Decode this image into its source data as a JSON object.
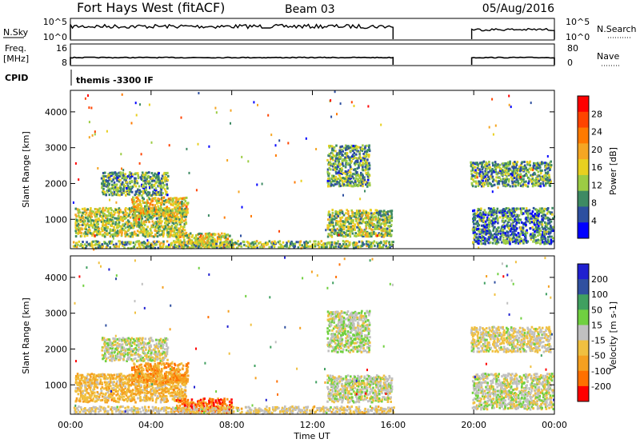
{
  "header": {
    "radar_title": "Fort Hays West (fitACF)",
    "beam": "Beam 03",
    "date": "05/Aug/2016"
  },
  "status_panel": {
    "nsky_label": "N.Sky",
    "nsky_ticks": [
      "10^5",
      "10^0"
    ],
    "nsearch_label": "N.Search",
    "nsearch_ticks": [
      "10^5",
      "10^0"
    ],
    "freq_label_1": "Freq.",
    "freq_label_2": "[MHz]",
    "freq_ticks": [
      "16",
      "8"
    ],
    "nave_label": "Nave",
    "nave_ticks": [
      "80",
      "0"
    ],
    "cpid_label": "CPID",
    "cpid_value": "themis -3300 IF"
  },
  "colors": {
    "power_scale": [
      "#0000ff",
      "#2d4fa0",
      "#3e8a63",
      "#9ccc44",
      "#e8d020",
      "#f5a623",
      "#ff7a00",
      "#ff4400",
      "#ff0000"
    ],
    "velocity_scale": [
      "#2020d0",
      "#3050a0",
      "#40a060",
      "#70d040",
      "#c0c0c0",
      "#f0c040",
      "#f5a020",
      "#ff7000",
      "#ff0000"
    ]
  },
  "chart_data": [
    {
      "type": "heatmap",
      "name": "power",
      "ylabel": "Slant Range [km]",
      "yticks": [
        "4000",
        "3000",
        "2000",
        "1000"
      ],
      "ylim": [
        180,
        4600
      ],
      "xlim": [
        0,
        24
      ],
      "colorbar_label": "Power [dB]",
      "colorbar_ticks": [
        "28",
        "24",
        "20",
        "16",
        "12",
        "8",
        "4"
      ],
      "colorbar_range": [
        0,
        32
      ],
      "regions": [
        {
          "t0": 0.2,
          "t1": 5.7,
          "r0": 500,
          "r1": 1300,
          "v": 14
        },
        {
          "t0": 3.0,
          "t1": 5.8,
          "r0": 1050,
          "r1": 1600,
          "v": 16
        },
        {
          "t0": 1.5,
          "t1": 4.8,
          "r0": 1650,
          "r1": 2300,
          "v": 10
        },
        {
          "t0": 5.2,
          "t1": 8.0,
          "r0": 200,
          "r1": 600,
          "v": 15
        },
        {
          "t0": 0.1,
          "t1": 16.0,
          "r0": 180,
          "r1": 380,
          "v": 12
        },
        {
          "t0": 12.7,
          "t1": 15.9,
          "r0": 500,
          "r1": 1250,
          "v": 13
        },
        {
          "t0": 12.7,
          "t1": 14.8,
          "r0": 1900,
          "r1": 3050,
          "v": 10
        },
        {
          "t0": 19.9,
          "t1": 23.9,
          "r0": 300,
          "r1": 1300,
          "v": 8
        },
        {
          "t0": 19.8,
          "t1": 23.8,
          "r0": 1900,
          "r1": 2600,
          "v": 10
        }
      ]
    },
    {
      "type": "heatmap",
      "name": "velocity",
      "ylabel": "Slant Range [km]",
      "yticks": [
        "4000",
        "3000",
        "2000",
        "1000"
      ],
      "ylim": [
        180,
        4600
      ],
      "xlim": [
        0,
        24
      ],
      "xticks": [
        "00:00",
        "04:00",
        "08:00",
        "12:00",
        "16:00",
        "20:00",
        "00:00"
      ],
      "xlabel": "Time UT",
      "colorbar_label": "Velocity [m s-1]",
      "colorbar_ticks": [
        "200",
        "100",
        "50",
        "15",
        "-15",
        "-50",
        "-100",
        "-200"
      ],
      "colorbar_range": [
        -250,
        250
      ],
      "regions": [
        {
          "t0": 0.2,
          "t1": 5.7,
          "r0": 500,
          "r1": 1300,
          "v": -70
        },
        {
          "t0": 3.0,
          "t1": 5.8,
          "r0": 1050,
          "r1": 1600,
          "v": -120
        },
        {
          "t0": 1.5,
          "t1": 4.8,
          "r0": 1650,
          "r1": 2300,
          "v": 0
        },
        {
          "t0": 5.2,
          "t1": 8.0,
          "r0": 200,
          "r1": 600,
          "v": -170
        },
        {
          "t0": 0.1,
          "t1": 16.0,
          "r0": 180,
          "r1": 380,
          "v": -30
        },
        {
          "t0": 12.7,
          "t1": 15.9,
          "r0": 500,
          "r1": 1250,
          "v": 0
        },
        {
          "t0": 12.7,
          "t1": 14.8,
          "r0": 1900,
          "r1": 3050,
          "v": 10
        },
        {
          "t0": 19.9,
          "t1": 23.9,
          "r0": 300,
          "r1": 1300,
          "v": 0
        },
        {
          "t0": 19.8,
          "t1": 23.8,
          "r0": 1900,
          "r1": 2600,
          "v": -20
        }
      ]
    }
  ]
}
